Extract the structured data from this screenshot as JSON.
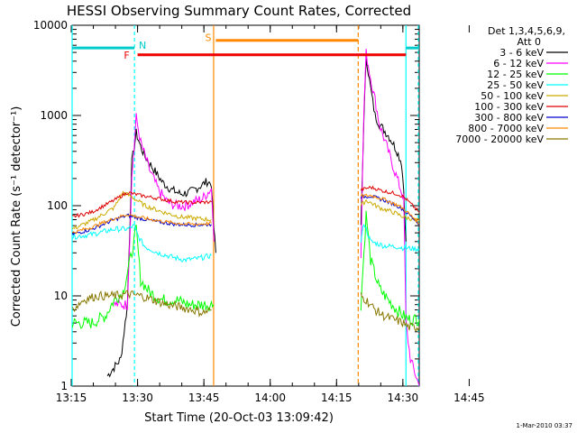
{
  "chart_data": {
    "type": "line",
    "title": "HESSI Observing Summary Count Rates, Corrected",
    "xlabel": "Start Time (20-Oct-03 13:09:42)",
    "ylabel": "Corrected Count Rate (s⁻¹ detector⁻¹)",
    "yscale": "log",
    "ylim": [
      1,
      10000
    ],
    "xlim_min": [
      5.5,
      84
    ],
    "x_unit": "minutes after 13:09:42",
    "x_ticks": [
      {
        "min": 5.3,
        "label": "13:15"
      },
      {
        "min": 20.3,
        "label": "13:30"
      },
      {
        "min": 35.3,
        "label": "13:45"
      },
      {
        "min": 50.3,
        "label": "14:00"
      },
      {
        "min": 65.3,
        "label": "14:15"
      },
      {
        "min": 80.3,
        "label": "14:30"
      },
      {
        "min": 95.3,
        "label": "14:45"
      }
    ],
    "y_ticks": [
      {
        "value": 1,
        "label": "1"
      },
      {
        "value": 10,
        "label": "10"
      },
      {
        "value": 100,
        "label": "100"
      },
      {
        "value": 1000,
        "label": "1000"
      },
      {
        "value": 10000,
        "label": "10000"
      }
    ],
    "legend": {
      "header1": "Det 1,3,4,5,6,9,",
      "header2": "Att 0",
      "placement": "right, outside plot"
    },
    "series": [
      {
        "name": "3 - 6 keV",
        "color": "#000000",
        "seg1": [
          [
            13.5,
            1.3
          ],
          [
            16.5,
            2
          ],
          [
            18,
            8
          ],
          [
            19,
            300
          ],
          [
            20,
            640
          ],
          [
            21,
            450
          ],
          [
            22,
            350
          ],
          [
            24,
            250
          ],
          [
            26,
            180
          ],
          [
            28,
            150
          ],
          [
            30,
            135
          ],
          [
            32,
            140
          ],
          [
            34,
            160
          ],
          [
            36,
            185
          ],
          [
            37,
            175
          ],
          [
            37.5,
            60
          ],
          [
            38,
            30
          ]
        ],
        "seg2": [
          [
            70.8,
            60
          ],
          [
            71.5,
            900
          ],
          [
            72,
            4500
          ],
          [
            73,
            2000
          ],
          [
            74,
            1000
          ],
          [
            75,
            800
          ],
          [
            77,
            600
          ],
          [
            78,
            500
          ],
          [
            79,
            400
          ],
          [
            80,
            300
          ],
          [
            80.5,
            150
          ],
          [
            81,
            40
          ]
        ]
      },
      {
        "name": "6 - 12 keV",
        "color": "#ff00ff",
        "seg1": [
          [
            15,
            8
          ],
          [
            16.5,
            8
          ],
          [
            18,
            8
          ],
          [
            19,
            200
          ],
          [
            20,
            950
          ],
          [
            21,
            500
          ],
          [
            23,
            250
          ],
          [
            25,
            150
          ],
          [
            27,
            110
          ],
          [
            29,
            100
          ],
          [
            31,
            100
          ],
          [
            33,
            110
          ],
          [
            35,
            120
          ],
          [
            37,
            155
          ],
          [
            37.6,
            40
          ]
        ],
        "seg2": [
          [
            70.8,
            30
          ],
          [
            71.5,
            1200
          ],
          [
            72,
            4900
          ],
          [
            73,
            2600
          ],
          [
            74,
            1500
          ],
          [
            75,
            800
          ],
          [
            77,
            400
          ],
          [
            79,
            200
          ],
          [
            80.5,
            120
          ],
          [
            81,
            5
          ],
          [
            82,
            2
          ],
          [
            84,
            1
          ]
        ]
      },
      {
        "name": "12 - 25 keV",
        "color": "#00ff00",
        "seg1": [
          [
            5.5,
            5
          ],
          [
            10,
            5
          ],
          [
            13,
            6
          ],
          [
            15,
            9
          ],
          [
            17,
            11
          ],
          [
            19,
            30
          ],
          [
            20,
            55
          ],
          [
            21,
            15
          ],
          [
            23,
            11
          ],
          [
            26,
            9
          ],
          [
            29,
            9
          ],
          [
            32,
            8
          ],
          [
            35,
            8
          ],
          [
            37.5,
            8
          ]
        ],
        "seg2": [
          [
            70.8,
            8
          ],
          [
            71.5,
            30
          ],
          [
            72,
            80
          ],
          [
            73,
            25
          ],
          [
            75,
            12
          ],
          [
            77,
            9
          ],
          [
            79,
            7
          ],
          [
            80.5,
            6
          ],
          [
            81.5,
            5.5
          ],
          [
            84,
            5.5
          ]
        ]
      },
      {
        "name": "25 - 50 keV",
        "color": "#00ffff",
        "seg1": [
          [
            5.5,
            45
          ],
          [
            10,
            48
          ],
          [
            15,
            55
          ],
          [
            18,
            55
          ],
          [
            19.5,
            60
          ],
          [
            20.5,
            45
          ],
          [
            22,
            35
          ],
          [
            25,
            30
          ],
          [
            28,
            27
          ],
          [
            31,
            25
          ],
          [
            34,
            26
          ],
          [
            37,
            28
          ]
        ],
        "seg2": [
          [
            70.8,
            40
          ],
          [
            71.5,
            65
          ],
          [
            72,
            55
          ],
          [
            73,
            40
          ],
          [
            76,
            36
          ],
          [
            79,
            35
          ],
          [
            80.5,
            34
          ],
          [
            84,
            33
          ]
        ]
      },
      {
        "name": "50 - 100 keV",
        "color": "#ccaa00",
        "seg1": [
          [
            5.5,
            55
          ],
          [
            10,
            68
          ],
          [
            15,
            95
          ],
          [
            17,
            140
          ],
          [
            19,
            125
          ],
          [
            22,
            100
          ],
          [
            26,
            85
          ],
          [
            30,
            75
          ],
          [
            34,
            72
          ],
          [
            37,
            70
          ]
        ],
        "seg2": [
          [
            70.8,
            100
          ],
          [
            72,
            115
          ],
          [
            75,
            95
          ],
          [
            78,
            85
          ],
          [
            80.5,
            75
          ],
          [
            84,
            68
          ]
        ]
      },
      {
        "name": "100 - 300 keV",
        "color": "#dd0000",
        "seg1": [
          [
            5.5,
            75
          ],
          [
            10,
            85
          ],
          [
            15,
            115
          ],
          [
            18,
            140
          ],
          [
            21,
            130
          ],
          [
            25,
            120
          ],
          [
            29,
            110
          ],
          [
            33,
            108
          ],
          [
            37,
            110
          ]
        ],
        "seg2": [
          [
            70.8,
            150
          ],
          [
            73,
            160
          ],
          [
            76,
            145
          ],
          [
            79,
            135
          ],
          [
            80.5,
            125
          ],
          [
            84,
            85
          ]
        ]
      },
      {
        "name": "300 - 800 keV",
        "color": "#0000cc",
        "seg1": [
          [
            5.5,
            48
          ],
          [
            10,
            55
          ],
          [
            15,
            70
          ],
          [
            18,
            78
          ],
          [
            21,
            72
          ],
          [
            25,
            66
          ],
          [
            29,
            62
          ],
          [
            33,
            61
          ],
          [
            37,
            62
          ]
        ],
        "seg2": [
          [
            70.8,
            125
          ],
          [
            73,
            128
          ],
          [
            76,
            115
          ],
          [
            79,
            100
          ],
          [
            80.5,
            90
          ],
          [
            84,
            63
          ]
        ]
      },
      {
        "name": "800 - 7000 keV",
        "color": "#ff8800",
        "seg1": [
          [
            5.5,
            50
          ],
          [
            10,
            58
          ],
          [
            15,
            72
          ],
          [
            18,
            80
          ],
          [
            21,
            74
          ],
          [
            25,
            68
          ],
          [
            29,
            64
          ],
          [
            33,
            62
          ],
          [
            37,
            64
          ]
        ],
        "seg2": [
          [
            70.8,
            128
          ],
          [
            73,
            130
          ],
          [
            76,
            118
          ],
          [
            79,
            102
          ],
          [
            80.5,
            92
          ],
          [
            84,
            64
          ]
        ]
      },
      {
        "name": "7000 - 20000 keV",
        "color": "#887700",
        "seg1": [
          [
            5.5,
            7
          ],
          [
            8,
            9
          ],
          [
            11,
            10
          ],
          [
            15,
            10
          ],
          [
            18,
            10.5
          ],
          [
            21,
            10
          ],
          [
            24,
            9
          ],
          [
            27,
            8
          ],
          [
            30,
            7.5
          ],
          [
            33,
            7
          ],
          [
            35,
            6.5
          ],
          [
            37,
            7
          ]
        ],
        "seg2": [
          [
            70.8,
            10
          ],
          [
            72,
            9
          ],
          [
            74,
            7
          ],
          [
            76,
            6
          ],
          [
            78,
            5.5
          ],
          [
            80.5,
            5
          ],
          [
            81.5,
            4.5
          ],
          [
            84,
            4.5
          ]
        ]
      }
    ],
    "flags": [
      {
        "label": "N",
        "color": "#00cccc",
        "x_start": 20.3,
        "x_end": 80.3,
        "y": 5600,
        "bar": false
      },
      {
        "label": "F",
        "color": "#ee0000",
        "x_start": 13.5,
        "x_end": 84,
        "y": 4700,
        "bar": true
      },
      {
        "label": "S",
        "color": "#ff8800",
        "x_start": 37.5,
        "x_end": 70.2,
        "y": 6800,
        "bar": true
      }
    ],
    "footer": "1-Mar-2010 03:37"
  }
}
